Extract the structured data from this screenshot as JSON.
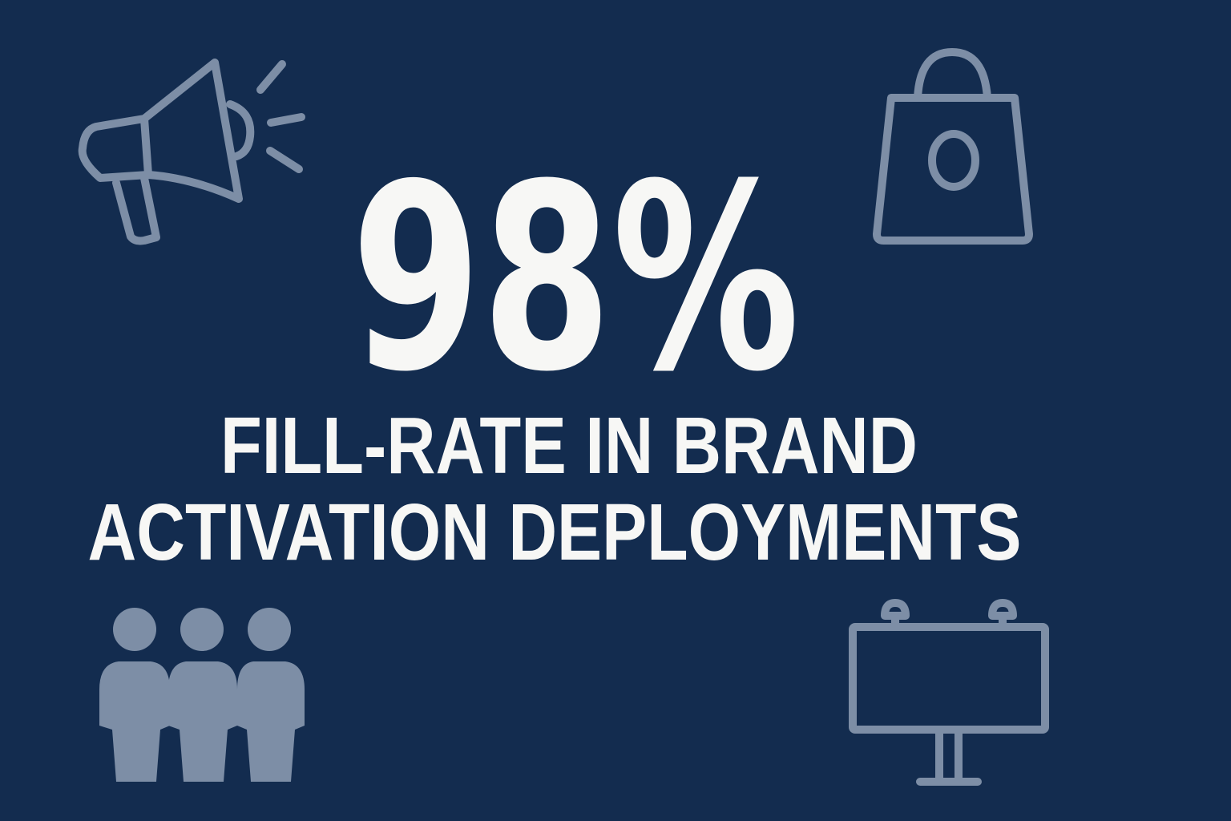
{
  "stat": {
    "value": "98%",
    "caption": [
      "FILL-RATE IN BRAND",
      "ACTIVATION DEPLOYMENTS"
    ]
  }
}
